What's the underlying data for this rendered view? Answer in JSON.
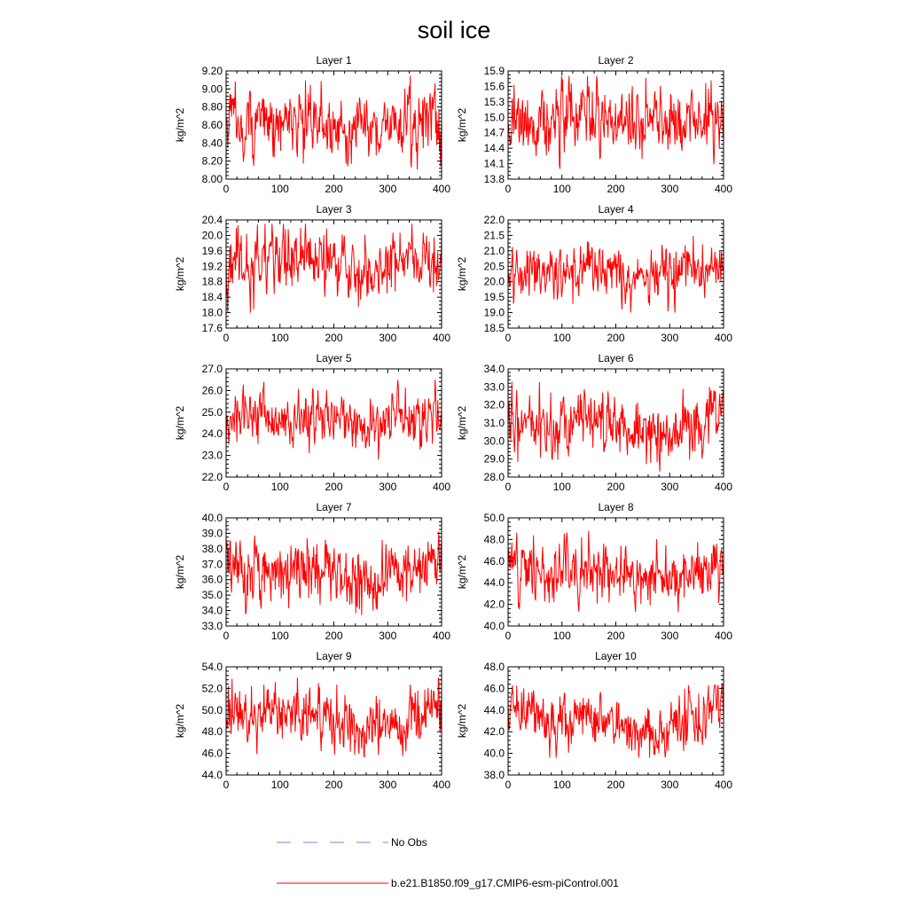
{
  "title": "soil ice",
  "colors": {
    "model": "#ff0000",
    "obs": "#8080e0",
    "axis": "#000000"
  },
  "legend": [
    {
      "label": "No Obs",
      "style": "dashed",
      "color": "#8080e0"
    },
    {
      "label": "b.e21.B1850.f09_g17.CMIP6-esm-piControl.001",
      "style": "solid",
      "color": "#ff0000"
    }
  ],
  "chart_data": [
    {
      "type": "line",
      "title": "Layer 1",
      "ylabel": "kg/m^2",
      "xlim": [
        0,
        400
      ],
      "xticks": [
        0,
        100,
        200,
        300,
        400
      ],
      "ylim": [
        8.0,
        9.2
      ],
      "yticks": [
        "8.00",
        "8.20",
        "8.40",
        "8.60",
        "8.80",
        "9.00",
        "9.20"
      ],
      "series": [
        {
          "name": "b.e21.B1850.f09_g17.CMIP6-esm-piControl.001",
          "n": 400,
          "mean": 8.62,
          "sd": 0.18,
          "min": 8.1,
          "max": 9.15,
          "trend": [
            0.05,
            -0.02,
            0.02,
            -0.06,
            -0.02,
            0.02
          ]
        }
      ]
    },
    {
      "type": "line",
      "title": "Layer 2",
      "ylabel": "kg/m^2",
      "xlim": [
        0,
        400
      ],
      "xticks": [
        0,
        100,
        200,
        300,
        400
      ],
      "ylim": [
        13.8,
        15.9
      ],
      "yticks": [
        "13.8",
        "14.1",
        "14.4",
        "14.7",
        "15.0",
        "15.3",
        "15.6",
        "15.9"
      ],
      "series": [
        {
          "name": "b.e21.B1850.f09_g17.CMIP6-esm-piControl.001",
          "n": 400,
          "mean": 14.95,
          "sd": 0.32,
          "min": 14.0,
          "max": 15.8,
          "trend": [
            0.05,
            -0.03,
            0.05,
            -0.08,
            -0.02,
            0.05
          ]
        }
      ]
    },
    {
      "type": "line",
      "title": "Layer 3",
      "ylabel": "kg/m^2",
      "xlim": [
        0,
        400
      ],
      "xticks": [
        0,
        100,
        200,
        300,
        400
      ],
      "ylim": [
        17.6,
        20.4
      ],
      "yticks": [
        "17.6",
        "18.0",
        "18.4",
        "18.8",
        "19.2",
        "19.6",
        "20.0",
        "20.4"
      ],
      "series": [
        {
          "name": "b.e21.B1850.f09_g17.CMIP6-esm-piControl.001",
          "n": 400,
          "mean": 19.3,
          "sd": 0.42,
          "min": 18.0,
          "max": 20.3,
          "trend": [
            0.1,
            -0.05,
            0.1,
            -0.15,
            -0.05,
            0.1
          ]
        }
      ]
    },
    {
      "type": "line",
      "title": "Layer 4",
      "ylabel": "kg/m^2",
      "xlim": [
        0,
        400
      ],
      "xticks": [
        0,
        100,
        200,
        300,
        400
      ],
      "ylim": [
        18.5,
        22.0
      ],
      "yticks": [
        "18.5",
        "19.0",
        "19.5",
        "20.0",
        "20.5",
        "21.0",
        "21.5",
        "22.0"
      ],
      "series": [
        {
          "name": "b.e21.B1850.f09_g17.CMIP6-esm-piControl.001",
          "n": 400,
          "mean": 20.3,
          "sd": 0.42,
          "min": 19.0,
          "max": 21.6,
          "trend": [
            0.15,
            0.05,
            0.05,
            -0.2,
            -0.1,
            0.2
          ]
        }
      ]
    },
    {
      "type": "line",
      "title": "Layer 5",
      "ylabel": "kg/m^2",
      "xlim": [
        0,
        400
      ],
      "xticks": [
        0,
        100,
        200,
        300,
        400
      ],
      "ylim": [
        22.0,
        27.0
      ],
      "yticks": [
        "22.0",
        "23.0",
        "24.0",
        "25.0",
        "26.0",
        "27.0"
      ],
      "series": [
        {
          "name": "b.e21.B1850.f09_g17.CMIP6-esm-piControl.001",
          "n": 400,
          "mean": 24.7,
          "sd": 0.6,
          "min": 22.8,
          "max": 26.5,
          "trend": [
            0.1,
            0.0,
            0.1,
            -0.3,
            -0.1,
            0.3
          ]
        }
      ]
    },
    {
      "type": "line",
      "title": "Layer 6",
      "ylabel": "kg/m^2",
      "xlim": [
        0,
        400
      ],
      "xticks": [
        0,
        100,
        200,
        300,
        400
      ],
      "ylim": [
        28.0,
        34.0
      ],
      "yticks": [
        "28.0",
        "29.0",
        "30.0",
        "31.0",
        "32.0",
        "33.0",
        "34.0"
      ],
      "series": [
        {
          "name": "b.e21.B1850.f09_g17.CMIP6-esm-piControl.001",
          "n": 400,
          "mean": 31.0,
          "sd": 0.85,
          "min": 28.3,
          "max": 33.3,
          "trend": [
            0.2,
            0.0,
            0.1,
            -0.5,
            -0.2,
            0.4
          ]
        }
      ]
    },
    {
      "type": "line",
      "title": "Layer 7",
      "ylabel": "kg/m^2",
      "xlim": [
        0,
        400
      ],
      "xticks": [
        0,
        100,
        200,
        300,
        400
      ],
      "ylim": [
        33.0,
        40.0
      ],
      "yticks": [
        "33.0",
        "34.0",
        "35.0",
        "36.0",
        "37.0",
        "38.0",
        "39.0",
        "40.0"
      ],
      "series": [
        {
          "name": "b.e21.B1850.f09_g17.CMIP6-esm-piControl.001",
          "n": 400,
          "mean": 36.6,
          "sd": 1.0,
          "min": 33.6,
          "max": 39.5,
          "trend": [
            0.3,
            -0.1,
            0.5,
            -0.9,
            -0.3,
            0.8
          ]
        }
      ]
    },
    {
      "type": "line",
      "title": "Layer 8",
      "ylabel": "kg/m^2",
      "xlim": [
        0,
        400
      ],
      "xticks": [
        0,
        100,
        200,
        300,
        400
      ],
      "ylim": [
        40.0,
        50.0
      ],
      "yticks": [
        "40.0",
        "42.0",
        "44.0",
        "46.0",
        "48.0",
        "50.0"
      ],
      "series": [
        {
          "name": "b.e21.B1850.f09_g17.CMIP6-esm-piControl.001",
          "n": 400,
          "mean": 45.0,
          "sd": 1.3,
          "min": 41.3,
          "max": 48.8,
          "trend": [
            0.5,
            0.0,
            0.6,
            -1.2,
            -0.4,
            1.0
          ]
        }
      ]
    },
    {
      "type": "line",
      "title": "Layer 9",
      "ylabel": "kg/m^2",
      "xlim": [
        0,
        400
      ],
      "xticks": [
        0,
        100,
        200,
        300,
        400
      ],
      "ylim": [
        44.0,
        54.0
      ],
      "yticks": [
        "44.0",
        "46.0",
        "48.0",
        "50.0",
        "52.0",
        "54.0"
      ],
      "series": [
        {
          "name": "b.e21.B1850.f09_g17.CMIP6-esm-piControl.001",
          "n": 400,
          "mean": 49.3,
          "sd": 1.3,
          "min": 45.3,
          "max": 53.0,
          "trend": [
            0.6,
            0.0,
            0.5,
            -1.5,
            -0.5,
            1.5
          ]
        }
      ]
    },
    {
      "type": "line",
      "title": "Layer 10",
      "ylabel": "kg/m^2",
      "xlim": [
        0,
        400
      ],
      "xticks": [
        0,
        100,
        200,
        300,
        400
      ],
      "ylim": [
        38.0,
        48.0
      ],
      "yticks": [
        "38.0",
        "40.0",
        "42.0",
        "44.0",
        "46.0",
        "48.0"
      ],
      "series": [
        {
          "name": "b.e21.B1850.f09_g17.CMIP6-esm-piControl.001",
          "n": 400,
          "mean": 43.2,
          "sd": 1.2,
          "min": 39.6,
          "max": 46.3,
          "trend": [
            0.5,
            0.0,
            0.6,
            -1.5,
            -0.6,
            1.4
          ]
        }
      ]
    }
  ]
}
